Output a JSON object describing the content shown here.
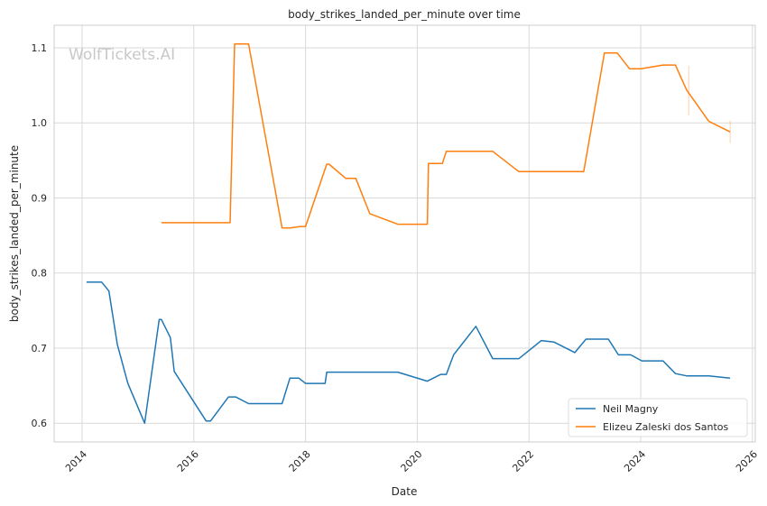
{
  "chart_data": {
    "type": "line",
    "title": "body_strikes_landed_per_minute over time",
    "xlabel": "Date",
    "ylabel": "body_strikes_landed_per_minute",
    "watermark": "WolfTickets.AI",
    "xlim": [
      2013.5,
      2026.05
    ],
    "ylim": [
      0.575,
      1.13
    ],
    "x_ticks": [
      2014,
      2016,
      2018,
      2020,
      2022,
      2024,
      2026
    ],
    "y_ticks": [
      0.6,
      0.7,
      0.8,
      0.9,
      1.0,
      1.1
    ],
    "y_tick_labels": [
      "0.6",
      "0.7",
      "0.8",
      "0.9",
      "1.0",
      "1.1"
    ],
    "grid": true,
    "legend_position": "lower-right",
    "series": [
      {
        "name": "Neil Magny",
        "color": "#1f77b4",
        "points": [
          [
            2014.08,
            0.788
          ],
          [
            2014.35,
            0.788
          ],
          [
            2014.48,
            0.776
          ],
          [
            2014.63,
            0.705
          ],
          [
            2014.82,
            0.653
          ],
          [
            2015.12,
            0.6
          ],
          [
            2015.38,
            0.738
          ],
          [
            2015.42,
            0.738
          ],
          [
            2015.58,
            0.714
          ],
          [
            2015.65,
            0.669
          ],
          [
            2016.22,
            0.603
          ],
          [
            2016.3,
            0.603
          ],
          [
            2016.62,
            0.635
          ],
          [
            2016.75,
            0.635
          ],
          [
            2016.98,
            0.626
          ],
          [
            2017.58,
            0.626
          ],
          [
            2017.72,
            0.66
          ],
          [
            2017.88,
            0.66
          ],
          [
            2018.0,
            0.653
          ],
          [
            2018.35,
            0.653
          ],
          [
            2018.38,
            0.668
          ],
          [
            2019.65,
            0.668
          ],
          [
            2020.18,
            0.656
          ],
          [
            2020.42,
            0.665
          ],
          [
            2020.52,
            0.665
          ],
          [
            2020.65,
            0.691
          ],
          [
            2021.05,
            0.729
          ],
          [
            2021.35,
            0.686
          ],
          [
            2021.82,
            0.686
          ],
          [
            2022.22,
            0.71
          ],
          [
            2022.45,
            0.708
          ],
          [
            2022.82,
            0.694
          ],
          [
            2023.02,
            0.712
          ],
          [
            2023.42,
            0.712
          ],
          [
            2023.6,
            0.691
          ],
          [
            2023.82,
            0.691
          ],
          [
            2024.02,
            0.683
          ],
          [
            2024.4,
            0.683
          ],
          [
            2024.62,
            0.666
          ],
          [
            2024.82,
            0.663
          ],
          [
            2025.22,
            0.663
          ],
          [
            2025.6,
            0.66
          ]
        ]
      },
      {
        "name": "Elizeu Zaleski dos Santos",
        "color": "#ff7f0e",
        "points": [
          [
            2015.42,
            0.867
          ],
          [
            2016.65,
            0.867
          ],
          [
            2016.73,
            1.105
          ],
          [
            2016.98,
            1.105
          ],
          [
            2017.58,
            0.86
          ],
          [
            2017.72,
            0.86
          ],
          [
            2017.9,
            0.862
          ],
          [
            2018.0,
            0.862
          ],
          [
            2018.38,
            0.945
          ],
          [
            2018.42,
            0.945
          ],
          [
            2018.72,
            0.926
          ],
          [
            2018.9,
            0.926
          ],
          [
            2019.15,
            0.879
          ],
          [
            2019.65,
            0.865
          ],
          [
            2020.18,
            0.865
          ],
          [
            2020.2,
            0.946
          ],
          [
            2020.45,
            0.946
          ],
          [
            2020.52,
            0.962
          ],
          [
            2021.35,
            0.962
          ],
          [
            2021.82,
            0.935
          ],
          [
            2022.98,
            0.935
          ],
          [
            2023.35,
            1.093
          ],
          [
            2023.58,
            1.093
          ],
          [
            2023.8,
            1.072
          ],
          [
            2024.0,
            1.072
          ],
          [
            2024.4,
            1.077
          ],
          [
            2024.62,
            1.077
          ],
          [
            2024.82,
            1.044
          ],
          [
            2025.22,
            1.002
          ],
          [
            2025.6,
            0.988
          ]
        ],
        "error_bars": [
          [
            2024.86,
            1.01,
            1.076
          ],
          [
            2025.6,
            0.973,
            1.003
          ]
        ]
      }
    ]
  }
}
